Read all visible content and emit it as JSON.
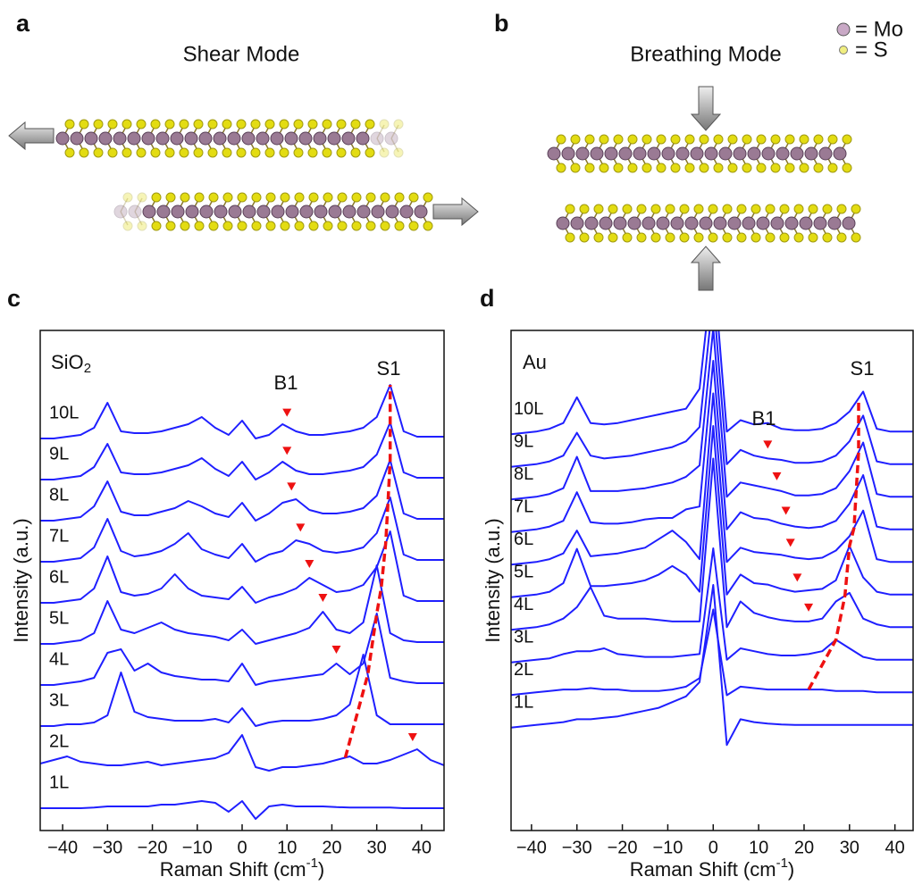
{
  "panel_labels": [
    "a",
    "b",
    "c",
    "d"
  ],
  "schematics": {
    "shear_title": "Shear Mode",
    "breathing_title": "Breathing Mode",
    "legend": [
      "= Mo",
      "= S"
    ]
  },
  "chart_data": [
    {
      "type": "line",
      "substrate": {
        "text": "SiO",
        "subscript": "2"
      },
      "x_label": {
        "text": "Raman Shift (cm",
        "superscript": "-1",
        "suffix": ")"
      },
      "y_label": "Intensity (a.u.)",
      "peak_labels": [
        "B1",
        "S1"
      ],
      "xlim": [
        -45,
        45
      ],
      "xticks": [
        {
          "value": -40,
          "label": "−40"
        },
        {
          "value": -30,
          "label": "−30"
        },
        {
          "value": -20,
          "label": "−20"
        },
        {
          "value": -10,
          "label": "−10"
        },
        0,
        10,
        20,
        30,
        40
      ],
      "x": [
        -45,
        -42,
        -39,
        -36,
        -33,
        -30,
        -27,
        -24,
        -21,
        -18,
        -15,
        -12,
        -9,
        -6,
        -3,
        0,
        3,
        6,
        9,
        12,
        15,
        18,
        21,
        24,
        27,
        30,
        33,
        36,
        39,
        42,
        45
      ],
      "series": [
        {
          "name": "1L",
          "color": "#1f1fff",
          "values": [
            0,
            0,
            0,
            0,
            0.02,
            0.05,
            0.05,
            0.05,
            0.05,
            0.1,
            0.1,
            0.15,
            0.2,
            0.15,
            -0.1,
            0.2,
            -0.3,
            0.05,
            0.1,
            0.05,
            0.05,
            0.05,
            0.03,
            0.02,
            0.02,
            0.02,
            0.02,
            0,
            0,
            0,
            0
          ]
        },
        {
          "name": "2L",
          "color": "#1f1fff",
          "values": [
            0.1,
            0.2,
            0.3,
            0.15,
            0.1,
            0.05,
            0.05,
            0.1,
            0.15,
            0.05,
            0.1,
            0.15,
            0.2,
            0.25,
            0.4,
            0.9,
            0,
            -0.1,
            0,
            0,
            0.05,
            0.1,
            0.2,
            0.3,
            0.1,
            0.1,
            0.2,
            0.35,
            0.5,
            0.2,
            0.05
          ]
        },
        {
          "name": "3L",
          "color": "#1f1fff",
          "values": [
            0,
            0,
            0.05,
            0.05,
            0.1,
            0.3,
            1.5,
            0.4,
            0.25,
            0.2,
            0.15,
            0.15,
            0.15,
            0.2,
            0.1,
            0.5,
            0,
            0.1,
            0.15,
            0.15,
            0.15,
            0.2,
            0.3,
            0.6,
            2.0,
            0.3,
            0.05,
            0.05,
            0.05,
            0.05,
            0.05
          ]
        },
        {
          "name": "4L",
          "color": "#1f1fff",
          "values": [
            0,
            0,
            0.05,
            0.1,
            0.2,
            0.9,
            1.0,
            0.4,
            0.6,
            0.35,
            0.25,
            0.2,
            0.15,
            0.15,
            0.1,
            0.6,
            0,
            0.1,
            0.15,
            0.2,
            0.25,
            0.3,
            0.6,
            0.3,
            0.6,
            2.0,
            0.2,
            0.1,
            0.05,
            0.05,
            0.05
          ]
        },
        {
          "name": "5L",
          "color": "#1f1fff",
          "values": [
            0,
            0,
            0.05,
            0.1,
            0.3,
            1.2,
            0.4,
            0.3,
            0.45,
            0.6,
            0.4,
            0.3,
            0.25,
            0.2,
            0.1,
            0.4,
            0,
            0.1,
            0.2,
            0.3,
            0.45,
            0.9,
            0.4,
            0.3,
            0.6,
            2.2,
            0.3,
            0.1,
            0.05,
            0.05,
            0.05
          ]
        },
        {
          "name": "6L",
          "color": "#1f1fff",
          "values": [
            0,
            0,
            0.05,
            0.1,
            0.4,
            1.3,
            0.3,
            0.2,
            0.25,
            0.4,
            0.8,
            0.4,
            0.2,
            0.15,
            0.1,
            0.45,
            0,
            0.15,
            0.25,
            0.4,
            0.7,
            0.5,
            0.3,
            0.35,
            0.5,
            1.0,
            2.0,
            0.2,
            0.05,
            0.05,
            0.05
          ]
        },
        {
          "name": "7L",
          "color": "#1f1fff",
          "values": [
            0,
            0,
            0.05,
            0.1,
            0.4,
            1.2,
            0.3,
            0.15,
            0.2,
            0.3,
            0.5,
            0.8,
            0.35,
            0.2,
            0.1,
            0.5,
            0,
            0.2,
            0.3,
            0.6,
            0.5,
            0.3,
            0.25,
            0.3,
            0.4,
            0.8,
            1.8,
            0.2,
            0.05,
            0.05,
            0.05
          ]
        },
        {
          "name": "8L",
          "color": "#1f1fff",
          "values": [
            0,
            0,
            0.05,
            0.1,
            0.4,
            1.1,
            0.25,
            0.15,
            0.15,
            0.25,
            0.35,
            0.55,
            0.4,
            0.2,
            0.1,
            0.5,
            0,
            0.2,
            0.5,
            0.6,
            0.3,
            0.2,
            0.2,
            0.25,
            0.35,
            0.7,
            1.7,
            0.2,
            0.05,
            0.05,
            0.05
          ]
        },
        {
          "name": "9L",
          "color": "#1f1fff",
          "values": [
            0,
            0,
            0.05,
            0.1,
            0.35,
            1.0,
            0.2,
            0.15,
            0.15,
            0.2,
            0.3,
            0.4,
            0.6,
            0.3,
            0.1,
            0.5,
            0,
            0.2,
            0.5,
            0.25,
            0.15,
            0.15,
            0.2,
            0.25,
            0.35,
            0.7,
            1.6,
            0.2,
            0.05,
            0.05,
            0.05
          ]
        },
        {
          "name": "10L",
          "color": "#1f1fff",
          "values": [
            0,
            0,
            0.05,
            0.1,
            0.3,
            1.0,
            0.2,
            0.15,
            0.15,
            0.2,
            0.3,
            0.4,
            0.6,
            0.3,
            0.1,
            0.5,
            0,
            0.1,
            0.4,
            0.2,
            0.1,
            0.1,
            0.15,
            0.2,
            0.3,
            0.6,
            1.5,
            0.2,
            0.05,
            0.05,
            0.05
          ]
        }
      ],
      "b1_markers": {
        "color": "#ee1111",
        "layer": [
          9,
          8,
          7,
          6,
          5,
          4,
          3,
          1
        ],
        "x": [
          10,
          10,
          11,
          13,
          15,
          18,
          21,
          38
        ]
      },
      "s1_fit": {
        "color": "#ee1111",
        "x": [
          null,
          23,
          28,
          30,
          31,
          32,
          32.5,
          33,
          33,
          33
        ]
      }
    },
    {
      "type": "line",
      "substrate": {
        "text": "Au"
      },
      "x_label": {
        "text": "Raman Shift (cm",
        "superscript": "-1",
        "suffix": ")"
      },
      "y_label": "Intensity (a.u.)",
      "peak_labels": [
        "B1",
        "S1"
      ],
      "xlim": [
        -44.5,
        44
      ],
      "xticks": [
        {
          "value": -40,
          "label": "−40"
        },
        {
          "value": -30,
          "label": "−30"
        },
        {
          "value": -20,
          "label": "−20"
        },
        {
          "value": -10,
          "label": "−10"
        },
        0,
        10,
        20,
        30,
        40
      ],
      "x": [
        -45,
        -42,
        -39,
        -36,
        -33,
        -30,
        -27,
        -24,
        -21,
        -18,
        -15,
        -12,
        -9,
        -6,
        -3,
        0,
        3,
        6,
        9,
        12,
        15,
        18,
        21,
        24,
        27,
        30,
        33,
        36,
        39,
        42,
        45
      ],
      "series": [
        {
          "name": "1L",
          "color": "#1f1fff",
          "values": [
            0,
            0.05,
            0.1,
            0.15,
            0.2,
            0.3,
            0.3,
            0.35,
            0.4,
            0.5,
            0.6,
            0.7,
            0.9,
            1.1,
            1.6,
            5,
            -0.6,
            0.3,
            0.2,
            0.15,
            0.12,
            0.1,
            0.1,
            0.1,
            0.1,
            0.1,
            0.1,
            0.1,
            0.1,
            0.1,
            0.1
          ]
        },
        {
          "name": "2L",
          "color": "#1f1fff",
          "values": [
            0,
            0.05,
            0.1,
            0.15,
            0.2,
            0.2,
            0.25,
            0.2,
            0.2,
            0.15,
            0.15,
            0.15,
            0.2,
            0.3,
            0.6,
            3,
            0,
            0.3,
            0.25,
            0.2,
            0.2,
            0.2,
            0.2,
            0.2,
            0.15,
            0.15,
            0.15,
            0.1,
            0.1,
            0.1,
            0.1
          ]
        },
        {
          "name": "3L",
          "color": "#1f1fff",
          "values": [
            0,
            0.05,
            0.1,
            0.15,
            0.3,
            0.4,
            0.4,
            0.5,
            0.3,
            0.25,
            0.2,
            0.2,
            0.2,
            0.25,
            0.3,
            4,
            0.1,
            0.5,
            0.4,
            0.3,
            0.25,
            0.25,
            0.3,
            0.4,
            0.8,
            0.5,
            0.2,
            0.1,
            0.1,
            0.1,
            0.1
          ]
        },
        {
          "name": "4L",
          "color": "#1f1fff",
          "values": [
            0,
            0.05,
            0.1,
            0.2,
            0.4,
            0.8,
            1.5,
            0.5,
            0.4,
            0.4,
            0.4,
            0.35,
            0.3,
            0.3,
            0.3,
            6,
            0.1,
            1.0,
            0.6,
            0.45,
            0.35,
            0.3,
            0.3,
            0.4,
            1.0,
            1.3,
            0.4,
            0.2,
            0.1,
            0.1,
            0.1
          ]
        },
        {
          "name": "5L",
          "color": "#1f1fff",
          "values": [
            0,
            0.05,
            0.1,
            0.2,
            0.5,
            1.7,
            0.4,
            0.4,
            0.45,
            0.5,
            0.6,
            0.8,
            1.1,
            0.8,
            0.2,
            6,
            0.1,
            0.8,
            0.5,
            0.45,
            0.3,
            0.2,
            0.25,
            0.3,
            0.6,
            1.8,
            0.7,
            0.2,
            0.1,
            0.1,
            0.1
          ]
        },
        {
          "name": "6L",
          "color": "#1f1fff",
          "values": [
            0,
            0.05,
            0.1,
            0.2,
            0.4,
            1.2,
            0.3,
            0.35,
            0.4,
            0.5,
            0.6,
            0.9,
            1.2,
            0.8,
            0.2,
            6,
            0.1,
            0.6,
            0.45,
            0.4,
            0.35,
            0.25,
            0.2,
            0.25,
            0.5,
            1.0,
            1.9,
            0.2,
            0.1,
            0.1,
            0.1
          ]
        },
        {
          "name": "7L",
          "color": "#1f1fff",
          "values": [
            0,
            0.05,
            0.1,
            0.2,
            0.4,
            1.4,
            0.35,
            0.3,
            0.3,
            0.35,
            0.45,
            0.5,
            0.5,
            0.8,
            0.9,
            6,
            0.1,
            0.7,
            0.5,
            0.45,
            0.3,
            0.2,
            0.15,
            0.2,
            0.4,
            1.0,
            2.0,
            0.2,
            0.1,
            0.1,
            0.1
          ]
        },
        {
          "name": "8L",
          "color": "#1f1fff",
          "values": [
            0,
            0.05,
            0.1,
            0.2,
            0.4,
            1.5,
            0.3,
            0.3,
            0.3,
            0.35,
            0.4,
            0.5,
            0.6,
            0.8,
            1.2,
            6,
            0.1,
            0.6,
            0.5,
            0.4,
            0.3,
            0.15,
            0.15,
            0.2,
            0.4,
            1.0,
            2.0,
            0.2,
            0.1,
            0.1,
            0.1
          ]
        },
        {
          "name": "9L",
          "color": "#1f1fff",
          "values": [
            0,
            0.05,
            0.1,
            0.2,
            0.4,
            1.2,
            0.4,
            0.3,
            0.35,
            0.4,
            0.5,
            0.6,
            0.7,
            0.9,
            1.4,
            6,
            0.1,
            0.6,
            0.4,
            0.3,
            0.25,
            0.15,
            0.15,
            0.2,
            0.4,
            0.9,
            1.8,
            0.2,
            0.1,
            0.1,
            0.1
          ]
        },
        {
          "name": "10L",
          "color": "#1f1fff",
          "values": [
            0,
            0.05,
            0.1,
            0.2,
            0.4,
            1.3,
            0.4,
            0.35,
            0.4,
            0.5,
            0.6,
            0.7,
            0.8,
            0.9,
            1.6,
            6,
            0.1,
            0.5,
            0.35,
            0.4,
            0.2,
            0.15,
            0.15,
            0.2,
            0.4,
            0.8,
            1.5,
            0.2,
            0.1,
            0.1,
            0.1
          ]
        }
      ],
      "b1_markers": {
        "color": "#ee1111",
        "layer": [
          8,
          7,
          6,
          5,
          4,
          3
        ],
        "x": [
          12,
          14,
          16,
          17,
          18.5,
          21
        ]
      },
      "s1_fit": {
        "color": "#ee1111",
        "x": [
          null,
          21,
          27,
          29,
          30,
          31,
          31.5,
          32,
          32,
          32
        ]
      }
    }
  ]
}
